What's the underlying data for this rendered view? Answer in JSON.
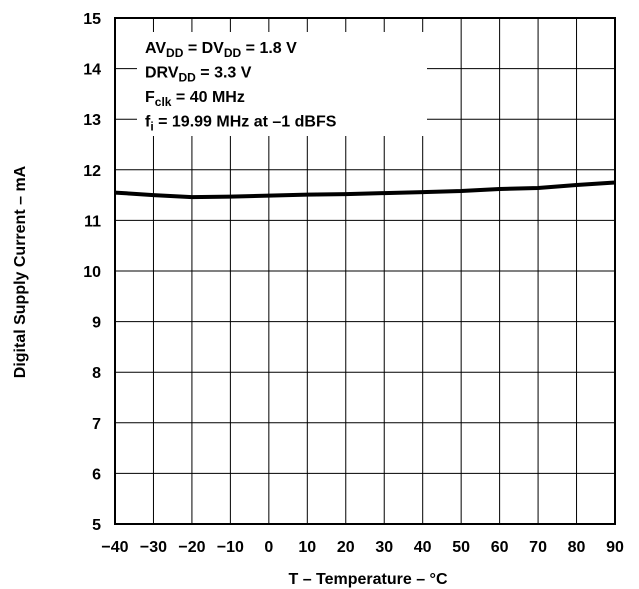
{
  "chart_data": {
    "type": "line",
    "title": "",
    "xlabel": "T – Temperature – °C",
    "ylabel": "Digital Supply Current – mA",
    "xlim": [
      -40,
      90
    ],
    "ylim": [
      5,
      15
    ],
    "xticks": [
      "−40",
      "−30",
      "−20",
      "−10",
      "0",
      "10",
      "20",
      "30",
      "40",
      "50",
      "60",
      "70",
      "80",
      "90"
    ],
    "yticks": [
      "5",
      "6",
      "7",
      "8",
      "9",
      "10",
      "11",
      "12",
      "13",
      "14",
      "15"
    ],
    "grid": true,
    "series": [
      {
        "x": [
          -40,
          -30,
          -20,
          -10,
          0,
          10,
          20,
          30,
          40,
          50,
          60,
          70,
          80,
          90
        ],
        "y": [
          11.55,
          11.5,
          11.46,
          11.47,
          11.49,
          11.51,
          11.52,
          11.54,
          11.56,
          11.58,
          11.62,
          11.64,
          11.7,
          11.75
        ],
        "color": "#000000"
      }
    ],
    "annotations": [
      {
        "parts": [
          {
            "t": "AV"
          },
          {
            "t": "DD",
            "sub": true
          },
          {
            "t": " = DV"
          },
          {
            "t": "DD",
            "sub": true
          },
          {
            "t": " = 1.8 V"
          }
        ]
      },
      {
        "parts": [
          {
            "t": "DRV"
          },
          {
            "t": "DD",
            "sub": true
          },
          {
            "t": " = 3.3 V"
          }
        ]
      },
      {
        "parts": [
          {
            "t": "F"
          },
          {
            "t": "clk",
            "sub": true
          },
          {
            "t": " = 40 MHz"
          }
        ]
      },
      {
        "parts": [
          {
            "t": "f"
          },
          {
            "t": "i",
            "sub": true
          },
          {
            "t": " = 19.99 MHz at –1 dBFS"
          }
        ]
      }
    ]
  }
}
